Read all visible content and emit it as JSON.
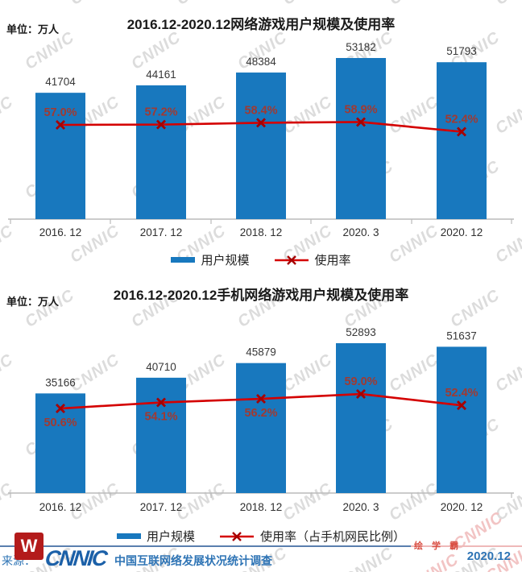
{
  "page": {
    "watermark_text": "CNNIC",
    "colors": {
      "bar_blue": "#1878BE",
      "line_red": "#D40000",
      "marker_red": "#A60000",
      "pct_label": "#A03A32",
      "value_label": "#383838",
      "axis_gray": "#BBBBBB",
      "footer_blue": "#2E74B5",
      "logo_red": "#B31B1B",
      "badge_red": "#D94F43",
      "watermark_gray": "#DCDCDC"
    }
  },
  "charts": [
    {
      "title": "2016.12-2020.12网络游戏用户规模及使用率",
      "unit_label": "单位：万人",
      "legend": [
        "用户规模",
        "使用率"
      ]
    },
    {
      "title": "2016.12-2020.12手机网络游戏用户规模及使用率",
      "unit_label": "单位：万人",
      "legend": [
        "用户规模",
        "使用率（占手机网民比例）"
      ]
    }
  ],
  "chart_data": [
    {
      "type": "bar+line",
      "title": "2016.12-2020.12网络游戏用户规模及使用率",
      "unit": "万人",
      "categories": [
        "2016. 12",
        "2017. 12",
        "2018. 12",
        "2020. 3",
        "2020. 12"
      ],
      "series": [
        {
          "name": "用户规模",
          "type": "bar",
          "unit": "万人",
          "values": [
            41704,
            44161,
            48384,
            53182,
            51793
          ],
          "color": "#1878BE"
        },
        {
          "name": "使用率",
          "type": "line",
          "unit": "%",
          "values": [
            57.0,
            57.2,
            58.4,
            58.9,
            52.4
          ],
          "line_color": "#D40000",
          "marker": "x",
          "marker_color": "#A60000",
          "label_side": [
            "above",
            "above",
            "above",
            "above",
            "above"
          ]
        }
      ],
      "y_axis_visible": false,
      "grid": false,
      "data_labels": true,
      "legend_position": "bottom"
    },
    {
      "type": "bar+line",
      "title": "2016.12-2020.12手机网络游戏用户规模及使用率",
      "unit": "万人",
      "categories": [
        "2016. 12",
        "2017. 12",
        "2018. 12",
        "2020. 3",
        "2020. 12"
      ],
      "series": [
        {
          "name": "用户规模",
          "type": "bar",
          "unit": "万人",
          "values": [
            35166,
            40710,
            45879,
            52893,
            51637
          ],
          "color": "#1878BE"
        },
        {
          "name": "使用率（占手机网民比例）",
          "type": "line",
          "unit": "%",
          "values": [
            50.6,
            54.1,
            56.2,
            59.0,
            52.4
          ],
          "line_color": "#D40000",
          "marker": "x",
          "marker_color": "#A60000",
          "label_side": [
            "below",
            "below",
            "below",
            "above",
            "above"
          ]
        }
      ],
      "y_axis_visible": false,
      "grid": false,
      "data_labels": true,
      "legend_position": "bottom"
    }
  ],
  "footer": {
    "source_prefix": "来源：",
    "logo_letter": "W",
    "org_wordmark": "CNNIC",
    "statement": "中国互联网络发展状况统计调查",
    "badge": "绘 学 霸",
    "date": "2020.12"
  }
}
